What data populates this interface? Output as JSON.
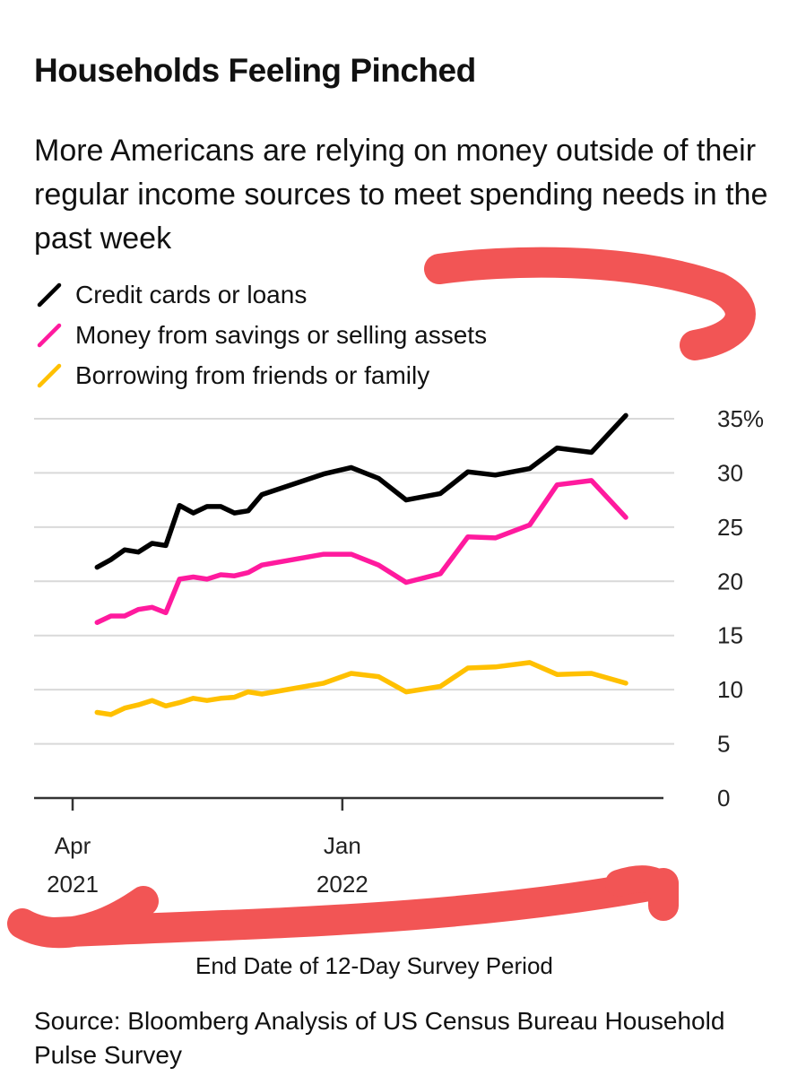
{
  "title": "Households Feeling Pinched",
  "subtitle": "More Americans are relying on money outside of their regular income sources to meet spending needs in the past week",
  "source": "Source: Bloomberg Analysis of US Census Bureau Household Pulse Survey",
  "colors": {
    "credit": "#000000",
    "savings": "#ff1a9e",
    "friends": "#ffc000",
    "grid": "#d9d9d9",
    "annotation": "#f25555"
  },
  "chart_data": {
    "type": "line",
    "title": "Households Feeling Pinched",
    "subtitle": "More Americans are relying on money outside of their regular income sources to meet spending needs in the past week",
    "xlabel": "End Date of 12-Day Survey Period",
    "ylabel": "",
    "ylim": [
      0,
      35
    ],
    "y_ticks": [
      {
        "value": 35,
        "label": "35%"
      },
      {
        "value": 30,
        "label": "30"
      },
      {
        "value": 25,
        "label": "25"
      },
      {
        "value": 20,
        "label": "20"
      },
      {
        "value": 15,
        "label": "15"
      },
      {
        "value": 10,
        "label": "10"
      },
      {
        "value": 5,
        "label": "5"
      },
      {
        "value": 0,
        "label": "0"
      }
    ],
    "x_ticks": [
      {
        "date": "2021-04",
        "month": "Apr",
        "year": "2021"
      },
      {
        "date": "2022-01",
        "month": "Jan",
        "year": "2022"
      }
    ],
    "x_domain": [
      "2021-04",
      "2022-10-17"
    ],
    "grid": true,
    "legend_position": "top-left",
    "x": [
      "2021-04-26",
      "2021-05-10",
      "2021-05-24",
      "2021-06-07",
      "2021-06-21",
      "2021-07-05",
      "2021-07-19",
      "2021-08-02",
      "2021-08-16",
      "2021-08-30",
      "2021-09-13",
      "2021-09-27",
      "2021-10-11",
      "2021-12-13",
      "2022-01-10",
      "2022-02-07",
      "2022-03-07",
      "2022-04-11",
      "2022-05-09",
      "2022-06-06",
      "2022-07-11",
      "2022-08-08",
      "2022-09-12",
      "2022-10-17"
    ],
    "series": [
      {
        "name": "Credit cards or loans",
        "color_key": "credit",
        "values": [
          21.3,
          22.0,
          22.9,
          22.7,
          23.5,
          23.3,
          27.0,
          26.3,
          26.9,
          26.9,
          26.3,
          26.5,
          28.0,
          29.9,
          30.5,
          29.5,
          27.5,
          28.1,
          30.1,
          29.8,
          30.4,
          32.3,
          31.9,
          35.3
        ]
      },
      {
        "name": "Money from savings or selling assets",
        "color_key": "savings",
        "values": [
          16.2,
          16.8,
          16.8,
          17.4,
          17.6,
          17.1,
          20.2,
          20.4,
          20.2,
          20.6,
          20.5,
          20.8,
          21.5,
          22.5,
          22.5,
          21.5,
          19.9,
          20.7,
          24.1,
          24.0,
          25.2,
          28.9,
          29.3,
          25.9
        ]
      },
      {
        "name": "Borrowing from friends or family",
        "color_key": "friends",
        "values": [
          7.9,
          7.7,
          8.3,
          8.6,
          9.0,
          8.5,
          8.8,
          9.2,
          9.0,
          9.2,
          9.3,
          9.8,
          9.6,
          10.6,
          11.5,
          11.2,
          9.8,
          10.3,
          12.0,
          12.1,
          12.5,
          11.4,
          11.5,
          10.6
        ]
      }
    ]
  }
}
